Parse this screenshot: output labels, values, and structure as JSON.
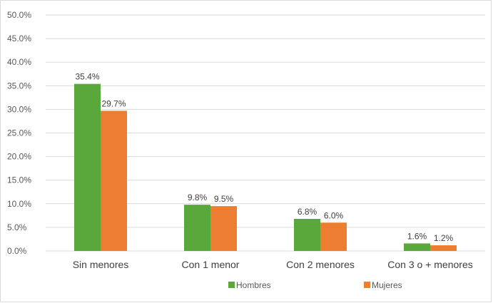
{
  "chart_data": {
    "type": "bar",
    "categories": [
      "Sin menores",
      "Con 1 menor",
      "Con 2 menores",
      "Con 3 o + menores"
    ],
    "series": [
      {
        "name": "Hombres",
        "values": [
          35.4,
          9.8,
          6.8,
          1.6
        ],
        "labels": [
          "35.4%",
          "9.8%",
          "6.8%",
          "1.6%"
        ],
        "color": "#5aa83c"
      },
      {
        "name": "Mujeres",
        "values": [
          29.7,
          9.5,
          6.0,
          1.2
        ],
        "labels": [
          "29.7%",
          "9.5%",
          "6.0%",
          "1.2%"
        ],
        "color": "#ed7d31"
      }
    ],
    "ylim": [
      0,
      50
    ],
    "yticks": [
      "0.0%",
      "5.0%",
      "10.0%",
      "15.0%",
      "20.0%",
      "25.0%",
      "30.0%",
      "35.0%",
      "40.0%",
      "45.0%",
      "50.0%"
    ],
    "ytick_values": [
      0,
      5,
      10,
      15,
      20,
      25,
      30,
      35,
      40,
      45,
      50
    ],
    "grid": true,
    "legend_position": "bottom",
    "gridline_color": "#d9d9d9",
    "title": "",
    "xlabel": "",
    "ylabel": ""
  }
}
